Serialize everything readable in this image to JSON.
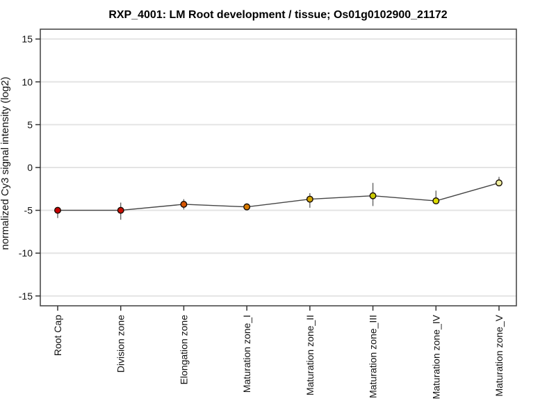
{
  "chart_data": {
    "type": "line",
    "title": "RXP_4001: LM Root development / tissue; Os01g0102900_21172",
    "xlabel": "",
    "ylabel": "normalized Cy3 signal intensity (log2)",
    "ylim": [
      -16.15,
      16.15
    ],
    "yticks": [
      15,
      10,
      5,
      0,
      -5,
      -10,
      -15
    ],
    "grid": "horizontal-on",
    "legend": "none",
    "categories": [
      "Root Cap",
      "Division zone",
      "Elongation zone",
      "Maturation zone_I",
      "Maturation zone_II",
      "Maturation zone_III",
      "Maturation zone_IV",
      "Maturation zone_V"
    ],
    "series": [
      {
        "name": "normalized Cy3 signal intensity (log2)",
        "values": [
          -5.0,
          -5.0,
          -4.3,
          -4.6,
          -3.7,
          -3.3,
          -3.9,
          -1.8
        ],
        "error_low": [
          -5.9,
          -6.1,
          -4.9,
          -4.9,
          -4.7,
          -4.5,
          -4.1,
          -2.1
        ],
        "error_high": [
          -4.8,
          -4.1,
          -3.7,
          -4.2,
          -3.0,
          -1.8,
          -2.7,
          -1.1
        ]
      }
    ],
    "point_colors": [
      "#c60000",
      "#c90d00",
      "#d65500",
      "#d97b00",
      "#d0a400",
      "#c9c900",
      "#dcdc00",
      "#f0f0a0"
    ],
    "line_color": "#454545",
    "error_bar_color": "#5c5c5c",
    "grid_color": "#e4e4e4",
    "frame_color": "#4a4a4a",
    "tick_color": "#333333",
    "background_color": "#ffffff"
  }
}
